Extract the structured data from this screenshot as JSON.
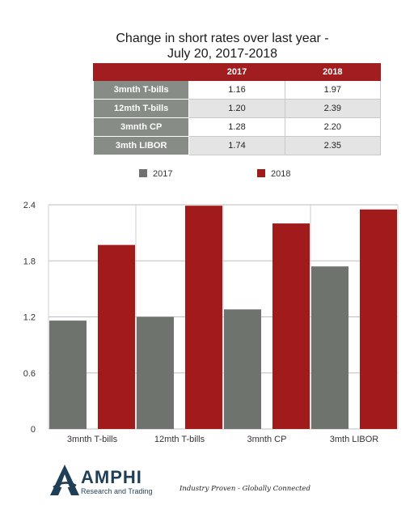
{
  "title_line1": "Change in short rates over last year -",
  "title_line2": "July 20, 2017-2018",
  "table": {
    "header": [
      "",
      "2017",
      "2018"
    ],
    "rows": [
      {
        "label": "3mnth T-bills",
        "v2017": "1.16",
        "v2018": "1.97"
      },
      {
        "label": "12mth T-bills",
        "v2017": "1.20",
        "v2018": "2.39"
      },
      {
        "label": "3mnth CP",
        "v2017": "1.28",
        "v2018": "2.20"
      },
      {
        "label": "3mth LIBOR",
        "v2017": "1.74",
        "v2018": "2.35"
      }
    ]
  },
  "chart_data": {
    "type": "bar",
    "categories": [
      "3mnth T-bills",
      "12mth T-bills",
      "3mnth CP",
      "3mth LIBOR"
    ],
    "series": [
      {
        "name": "2017",
        "values": [
          1.16,
          1.2,
          1.28,
          1.74
        ],
        "color": "#6e736e"
      },
      {
        "name": "2018",
        "values": [
          1.97,
          2.39,
          2.2,
          2.35
        ],
        "color": "#a11b1b"
      }
    ],
    "yticks": [
      "0",
      "0.6",
      "1.2",
      "1.8",
      "2.4"
    ],
    "ylim": [
      0,
      2.4
    ],
    "grid": true,
    "legend_position": "top"
  },
  "footer": {
    "brand": "AMPHI",
    "subtitle": "Research and Trading",
    "tagline": "Industry Proven - Globally Connected",
    "logo_color": "#1f3e57"
  }
}
